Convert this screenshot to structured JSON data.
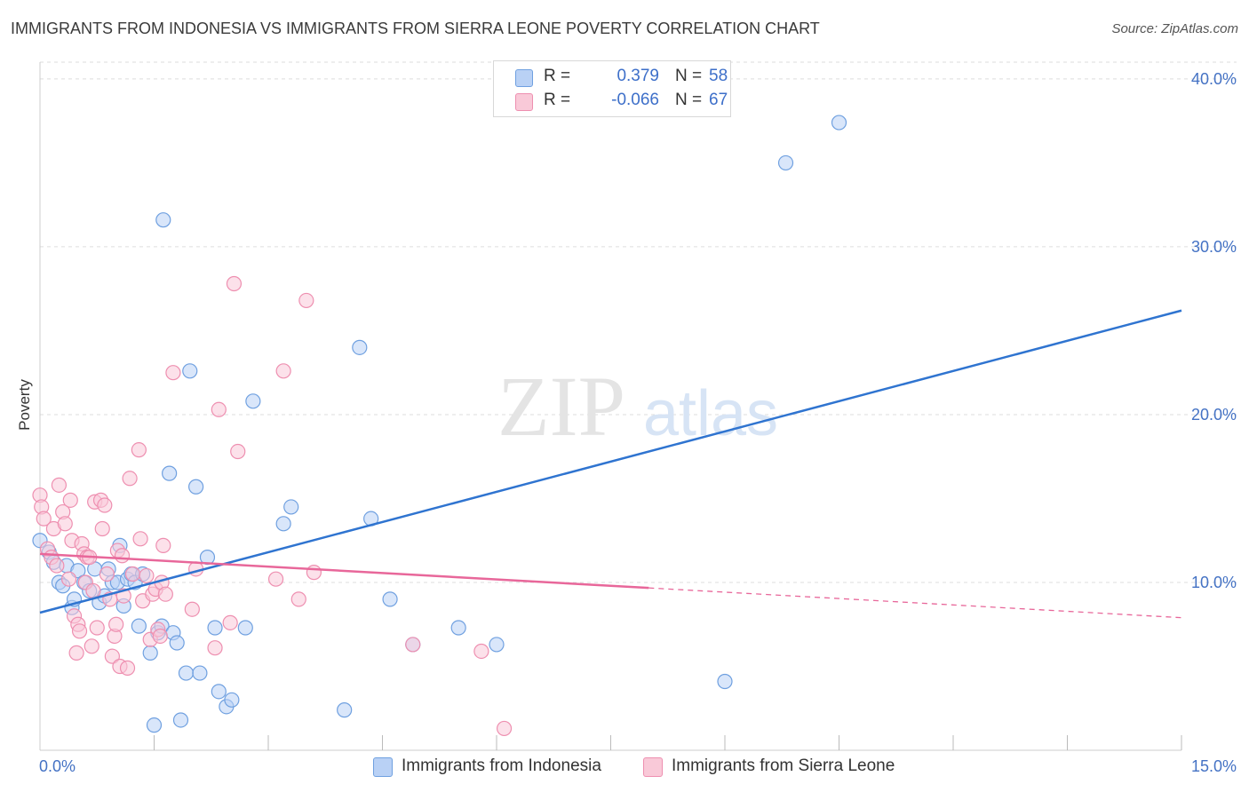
{
  "title": "IMMIGRANTS FROM INDONESIA VS IMMIGRANTS FROM SIERRA LEONE POVERTY CORRELATION CHART",
  "source": "Source: ZipAtlas.com",
  "watermark": {
    "zip": "ZIP",
    "atlas": "atlas"
  },
  "stats": [
    {
      "r_label": "R =",
      "r_value": "0.379",
      "n_label": "N =",
      "n_value": "58",
      "color": "#6fa0e0",
      "fill": "#b9d1f5"
    },
    {
      "r_label": "R =",
      "r_value": "-0.066",
      "n_label": "N =",
      "n_value": "67",
      "color": "#ee8fb0",
      "fill": "#f9c9d8"
    }
  ],
  "legend": [
    {
      "label": "Immigrants from Indonesia",
      "color": "#6fa0e0",
      "fill": "#b9d1f5"
    },
    {
      "label": "Immigrants from Sierra Leone",
      "color": "#ee8fb0",
      "fill": "#f9c9d8"
    }
  ],
  "chart_data": {
    "type": "scatter",
    "title": "IMMIGRANTS FROM INDONESIA VS IMMIGRANTS FROM SIERRA LEONE POVERTY CORRELATION CHART",
    "xlabel": "",
    "ylabel": "Poverty",
    "xlim": [
      0,
      15
    ],
    "ylim": [
      0,
      41
    ],
    "x_tick_labels": [
      "0.0%",
      "15.0%"
    ],
    "y_ticks": [
      10,
      20,
      30,
      40
    ],
    "y_tick_labels": [
      "10.0%",
      "20.0%",
      "30.0%",
      "40.0%"
    ],
    "grid": true,
    "legend_position": "bottom",
    "series": [
      {
        "name": "Immigrants from Indonesia",
        "color": "#6fa0e0",
        "fill": "#b9d1f5",
        "trend": {
          "x": [
            0,
            15
          ],
          "y": [
            8.2,
            26.2
          ],
          "dashed_from": null
        },
        "points": [
          [
            0.0,
            12.5
          ],
          [
            0.12,
            11.8
          ],
          [
            0.18,
            11.2
          ],
          [
            0.25,
            10.0
          ],
          [
            0.3,
            9.8
          ],
          [
            0.35,
            11.0
          ],
          [
            0.42,
            8.5
          ],
          [
            0.45,
            9.0
          ],
          [
            0.5,
            10.7
          ],
          [
            0.58,
            10.0
          ],
          [
            0.65,
            9.5
          ],
          [
            0.72,
            10.8
          ],
          [
            0.78,
            8.8
          ],
          [
            0.85,
            9.2
          ],
          [
            0.9,
            10.8
          ],
          [
            0.95,
            10.0
          ],
          [
            1.02,
            10.0
          ],
          [
            1.05,
            12.2
          ],
          [
            1.1,
            8.6
          ],
          [
            1.15,
            10.2
          ],
          [
            1.2,
            10.5
          ],
          [
            1.25,
            10.0
          ],
          [
            1.3,
            7.4
          ],
          [
            1.35,
            10.5
          ],
          [
            1.45,
            5.8
          ],
          [
            1.5,
            1.5
          ],
          [
            1.55,
            7.0
          ],
          [
            1.6,
            7.4
          ],
          [
            1.62,
            31.6
          ],
          [
            1.7,
            16.5
          ],
          [
            1.75,
            7.0
          ],
          [
            1.8,
            6.4
          ],
          [
            1.85,
            1.8
          ],
          [
            1.92,
            4.6
          ],
          [
            1.97,
            22.6
          ],
          [
            2.05,
            15.7
          ],
          [
            2.1,
            4.6
          ],
          [
            2.2,
            11.5
          ],
          [
            2.3,
            7.3
          ],
          [
            2.35,
            3.5
          ],
          [
            2.45,
            2.6
          ],
          [
            2.52,
            3.0
          ],
          [
            2.7,
            7.3
          ],
          [
            2.8,
            20.8
          ],
          [
            3.2,
            13.5
          ],
          [
            3.3,
            14.5
          ],
          [
            4.0,
            2.4
          ],
          [
            4.2,
            24.0
          ],
          [
            4.35,
            13.8
          ],
          [
            4.6,
            9.0
          ],
          [
            4.9,
            6.3
          ],
          [
            5.5,
            7.3
          ],
          [
            6.0,
            6.3
          ],
          [
            9.0,
            4.1
          ],
          [
            9.8,
            35.0
          ],
          [
            10.5,
            37.4
          ]
        ]
      },
      {
        "name": "Immigrants from Sierra Leone",
        "color": "#ee8fb0",
        "fill": "#f9c9d8",
        "trend": {
          "x": [
            0,
            15
          ],
          "y": [
            11.7,
            7.9
          ],
          "dashed_from": 8.0
        },
        "points": [
          [
            0.0,
            15.2
          ],
          [
            0.02,
            14.5
          ],
          [
            0.05,
            13.8
          ],
          [
            0.1,
            12.0
          ],
          [
            0.15,
            11.5
          ],
          [
            0.18,
            13.2
          ],
          [
            0.22,
            11.0
          ],
          [
            0.25,
            15.8
          ],
          [
            0.3,
            14.2
          ],
          [
            0.33,
            13.5
          ],
          [
            0.38,
            10.2
          ],
          [
            0.4,
            14.9
          ],
          [
            0.42,
            12.5
          ],
          [
            0.45,
            8.0
          ],
          [
            0.48,
            5.8
          ],
          [
            0.5,
            7.5
          ],
          [
            0.52,
            7.1
          ],
          [
            0.55,
            12.3
          ],
          [
            0.58,
            11.7
          ],
          [
            0.6,
            10.0
          ],
          [
            0.62,
            11.5
          ],
          [
            0.65,
            11.5
          ],
          [
            0.68,
            6.2
          ],
          [
            0.7,
            9.5
          ],
          [
            0.72,
            14.8
          ],
          [
            0.75,
            7.3
          ],
          [
            0.8,
            14.9
          ],
          [
            0.82,
            13.2
          ],
          [
            0.85,
            14.6
          ],
          [
            0.88,
            10.5
          ],
          [
            0.92,
            9.0
          ],
          [
            0.95,
            5.6
          ],
          [
            0.98,
            6.8
          ],
          [
            1.0,
            7.5
          ],
          [
            1.02,
            11.9
          ],
          [
            1.05,
            5.0
          ],
          [
            1.08,
            11.6
          ],
          [
            1.1,
            9.2
          ],
          [
            1.15,
            4.9
          ],
          [
            1.18,
            16.2
          ],
          [
            1.22,
            10.5
          ],
          [
            1.3,
            17.9
          ],
          [
            1.32,
            12.6
          ],
          [
            1.35,
            8.9
          ],
          [
            1.4,
            10.4
          ],
          [
            1.45,
            6.6
          ],
          [
            1.48,
            9.3
          ],
          [
            1.52,
            9.6
          ],
          [
            1.55,
            7.2
          ],
          [
            1.58,
            6.8
          ],
          [
            1.6,
            10.0
          ],
          [
            1.62,
            12.2
          ],
          [
            1.65,
            9.3
          ],
          [
            1.75,
            22.5
          ],
          [
            2.0,
            8.4
          ],
          [
            2.05,
            10.8
          ],
          [
            2.3,
            6.1
          ],
          [
            2.35,
            20.3
          ],
          [
            2.5,
            7.6
          ],
          [
            2.55,
            27.8
          ],
          [
            2.6,
            17.8
          ],
          [
            3.1,
            10.2
          ],
          [
            3.2,
            22.6
          ],
          [
            3.4,
            9.0
          ],
          [
            3.5,
            26.8
          ],
          [
            3.6,
            10.6
          ],
          [
            4.9,
            6.3
          ],
          [
            5.8,
            5.9
          ],
          [
            6.1,
            1.3
          ]
        ]
      }
    ]
  }
}
